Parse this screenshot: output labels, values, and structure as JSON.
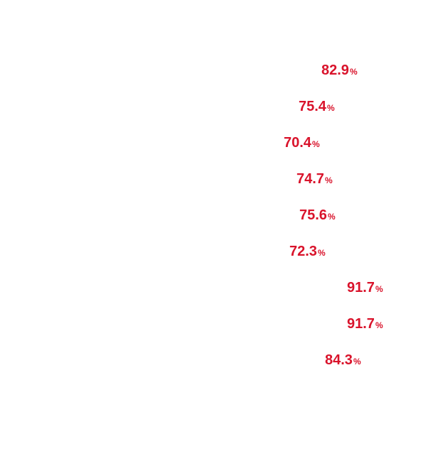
{
  "chart_data": {
    "type": "bar",
    "orientation": "horizontal",
    "values": [
      82.9,
      75.4,
      70.4,
      74.7,
      75.6,
      72.3,
      91.7,
      91.7,
      84.3
    ],
    "unit": "%",
    "bars_visible": false,
    "label_color": "#d9132b",
    "title": "",
    "xlabel": "",
    "ylabel": "",
    "grid": false,
    "legend": "none"
  }
}
